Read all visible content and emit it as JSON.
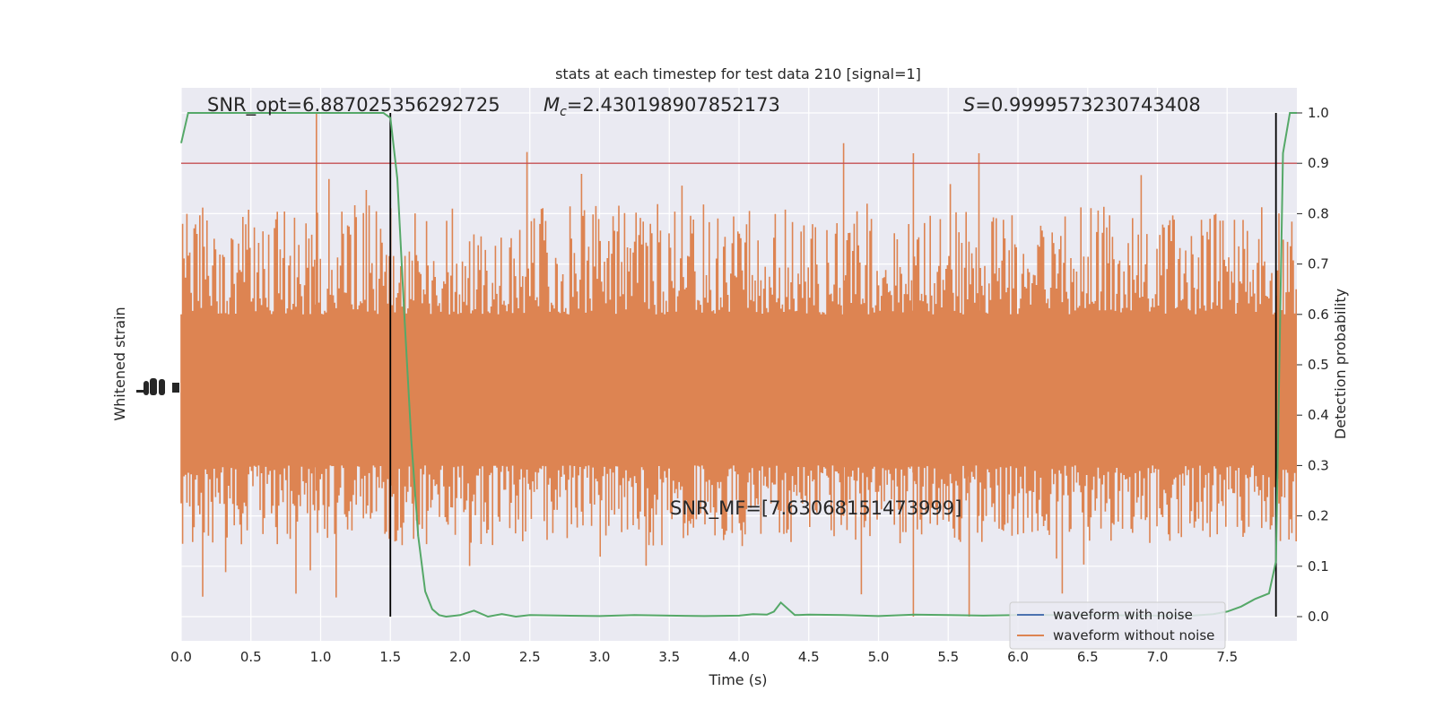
{
  "chart_data": {
    "type": "line",
    "title": "stats at each timestep for test data 210 [signal=1]",
    "xlabel": "Time (s)",
    "ylabel_left": "Whitened strain",
    "ylabel_right": "Detection probability",
    "xlim": [
      0.0,
      8.0
    ],
    "ylim_right": [
      -0.05,
      1.05
    ],
    "x_ticks": [
      "0.0",
      "0.5",
      "1.0",
      "1.5",
      "2.0",
      "2.5",
      "3.0",
      "3.5",
      "4.0",
      "4.5",
      "5.0",
      "5.5",
      "6.0",
      "6.5",
      "7.0",
      "7.5"
    ],
    "y_right_ticks": [
      "0.0",
      "0.1",
      "0.2",
      "0.3",
      "0.4",
      "0.5",
      "0.6",
      "0.7",
      "0.8",
      "0.9",
      "1.0"
    ],
    "grid": true,
    "legend_position": "lower right",
    "annotations": {
      "snr_opt": "SNR_opt=6.887025356292725",
      "mc_symbol": "M",
      "mc_subscript": "c",
      "mc_value": "=2.430198907852173",
      "s_symbol": "S",
      "s_value": "=0.9999573230743408",
      "snr_mf": "SNR_MF=[7.63068151473999]"
    },
    "series": [
      {
        "name": "waveform with noise",
        "color": "#4c72b0"
      },
      {
        "name": "waveform without noise",
        "color": "#dd8452"
      }
    ],
    "detection_probability": {
      "color": "#55a868",
      "x": [
        0.0,
        0.05,
        0.2,
        0.4,
        0.6,
        0.8,
        1.0,
        1.2,
        1.4,
        1.45,
        1.5,
        1.55,
        1.6,
        1.65,
        1.7,
        1.75,
        1.8,
        1.85,
        1.9,
        2.0,
        2.1,
        2.2,
        2.3,
        2.4,
        2.5,
        2.75,
        3.0,
        3.25,
        3.5,
        3.75,
        4.0,
        4.1,
        4.2,
        4.25,
        4.3,
        4.4,
        4.5,
        4.75,
        5.0,
        5.25,
        5.5,
        5.75,
        6.0,
        6.5,
        7.0,
        7.25,
        7.4,
        7.5,
        7.6,
        7.7,
        7.8,
        7.85,
        7.9,
        7.95,
        8.0
      ],
      "y": [
        0.94,
        1.0,
        1.0,
        1.0,
        1.0,
        1.0,
        1.0,
        1.0,
        1.0,
        1.0,
        0.99,
        0.87,
        0.6,
        0.35,
        0.16,
        0.05,
        0.015,
        0.003,
        0.0,
        0.003,
        0.012,
        0.0,
        0.005,
        0.0,
        0.003,
        0.002,
        0.001,
        0.003,
        0.002,
        0.001,
        0.002,
        0.005,
        0.004,
        0.01,
        0.028,
        0.003,
        0.004,
        0.003,
        0.001,
        0.004,
        0.003,
        0.002,
        0.003,
        0.003,
        0.002,
        0.002,
        0.005,
        0.01,
        0.02,
        0.035,
        0.046,
        0.11,
        0.92,
        1.0,
        1.0
      ]
    },
    "threshold": {
      "y": 0.9,
      "color": "#c44e52"
    },
    "vertical_markers": {
      "x": [
        1.5,
        7.85
      ],
      "color": "#000000"
    },
    "orange_noise_envelope": {
      "upper": 0.82,
      "lower": 0.14,
      "max_spike": 1.0,
      "min_spike": 0.0
    }
  }
}
